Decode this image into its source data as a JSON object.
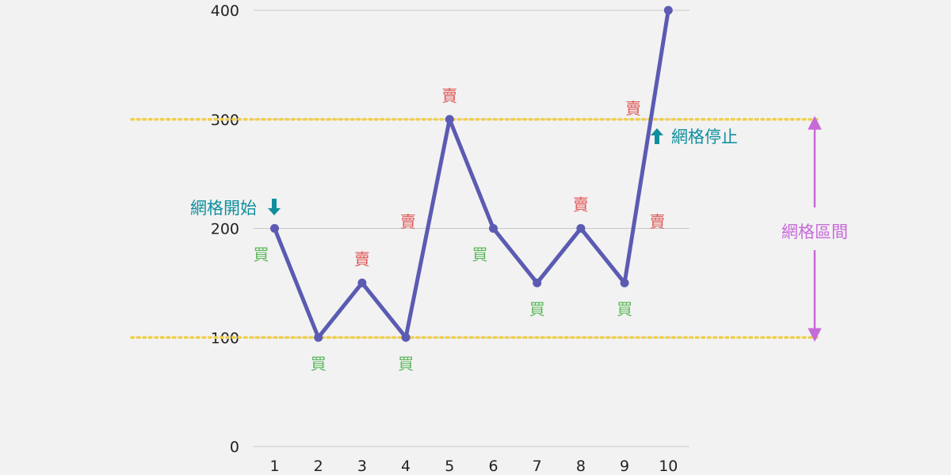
{
  "chart_data": {
    "type": "line",
    "x": [
      1,
      2,
      3,
      4,
      5,
      6,
      7,
      8,
      9,
      10
    ],
    "series": [
      {
        "values": [
          200,
          100,
          150,
          100,
          300,
          200,
          150,
          200,
          150,
          400
        ],
        "color": "#5b5bb3"
      }
    ],
    "ylim": [
      0,
      400
    ],
    "y_ticks": [
      0,
      100,
      200,
      300,
      400
    ],
    "grid": true,
    "grid_lines": {
      "upper": 300,
      "lower": 100,
      "color": "#f0cf4d",
      "style": "dotted"
    },
    "trade_labels": [
      {
        "x": 1,
        "label": "買",
        "type": "buy",
        "position": "below"
      },
      {
        "x": 2,
        "label": "買",
        "type": "buy",
        "position": "below"
      },
      {
        "x": 3,
        "label": "賣",
        "type": "sell",
        "position": "above"
      },
      {
        "x": 4,
        "label": "買",
        "type": "buy",
        "position": "below"
      },
      {
        "x": 4.05,
        "y": 206,
        "label": "賣",
        "type": "sell",
        "position": "at"
      },
      {
        "x": 5,
        "label": "賣",
        "type": "sell",
        "position": "above"
      },
      {
        "x": 6,
        "label": "買",
        "type": "buy",
        "position": "below"
      },
      {
        "x": 7,
        "label": "買",
        "type": "buy",
        "position": "below"
      },
      {
        "x": 8,
        "label": "賣",
        "type": "sell",
        "position": "above"
      },
      {
        "x": 9,
        "label": "買",
        "type": "buy",
        "position": "below"
      },
      {
        "x": 9.2,
        "y": 310,
        "label": "賣",
        "type": "sell",
        "position": "at"
      },
      {
        "x": 9.75,
        "y": 206,
        "label": "賣",
        "type": "sell",
        "position": "at"
      }
    ],
    "annotations": {
      "grid_start": "網格開始",
      "grid_stop": "網格停止",
      "grid_range": "網格區間"
    },
    "colors": {
      "buy": "#5cb85c",
      "sell": "#e05a5a",
      "annotation": "#0f8f9e",
      "range": "#c66ad8",
      "axis_text": "#222222",
      "gridline": "#c8c8c8"
    }
  }
}
